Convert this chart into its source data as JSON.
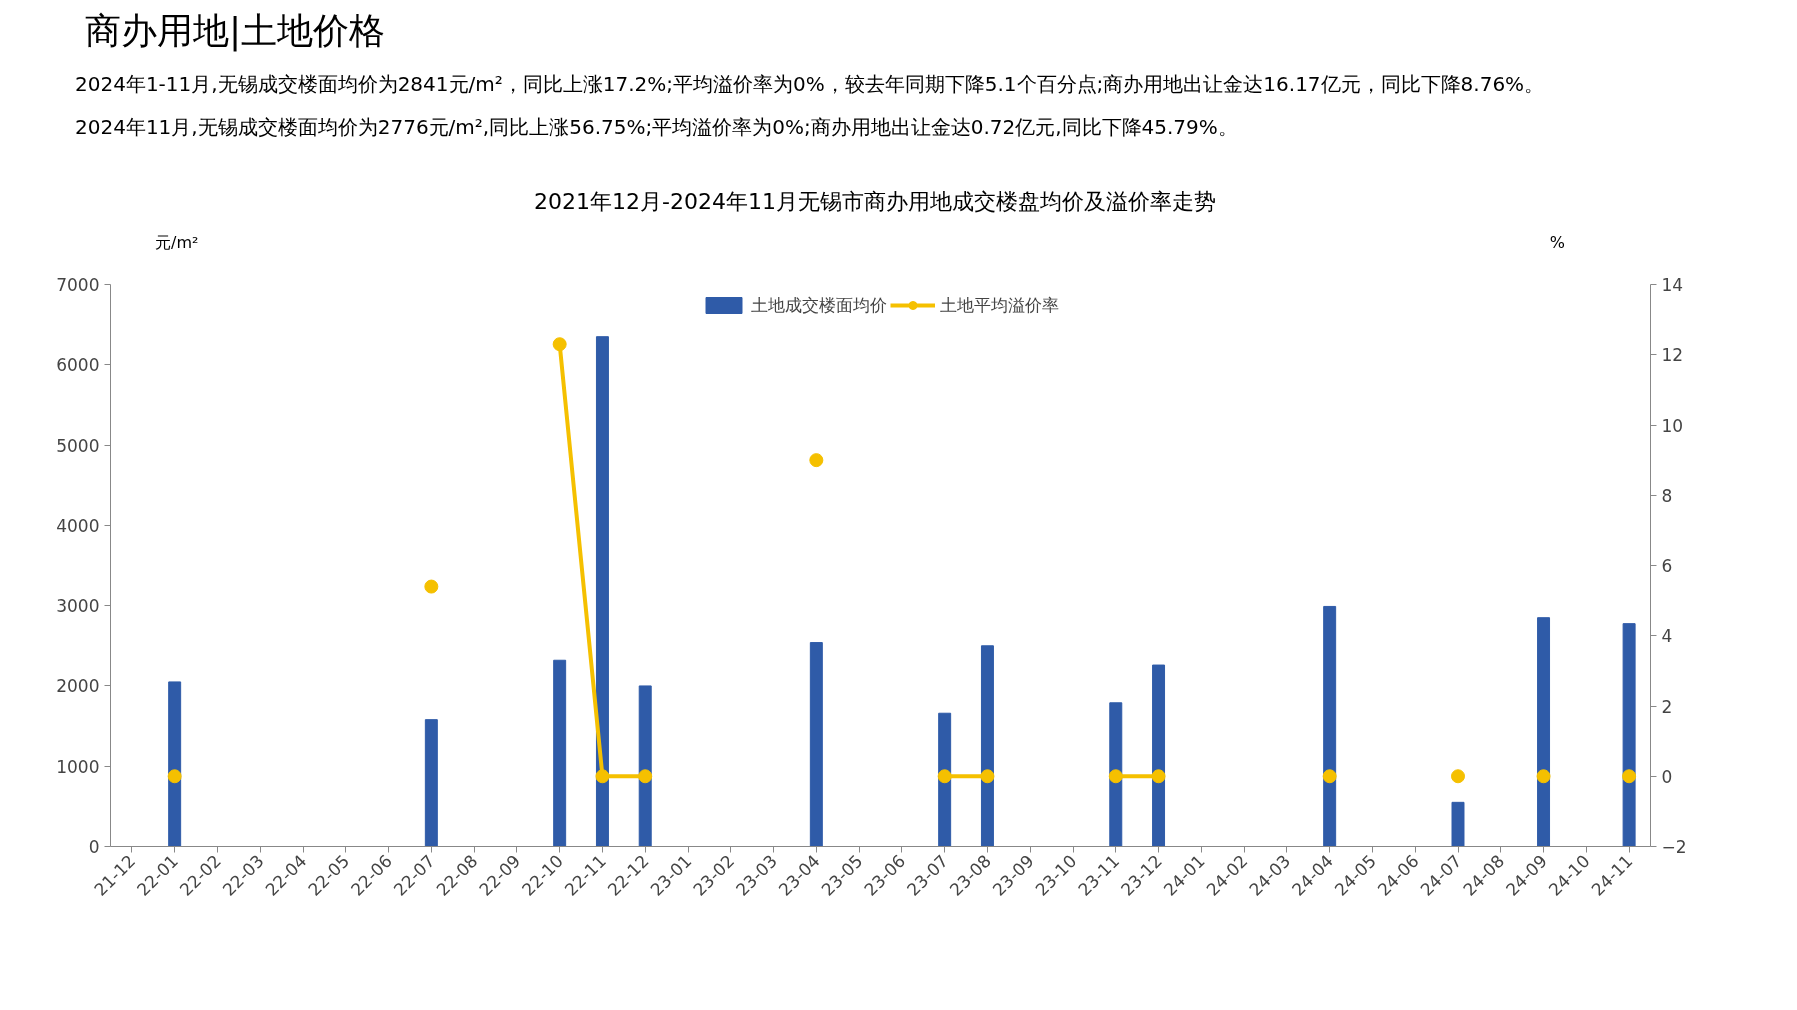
{
  "chart_data": {
    "type": "bar",
    "title": "商办用地|土地价格",
    "annotations": [
      "2024年1-11月,无锡成交楼面均价为2841元/m²，同比上涨17.2%;平均溢价率为0%，较去年同期下降5.1个百分点;商办用地出让金达16.17亿元，同比下降8.76%。",
      "2024年11月,无锡成交楼面均价为2776元/m²,同比上涨56.75%;平均溢价率为0%;商办用地出让金达0.72亿元,同比下降45.79%。"
    ],
    "subtitle": "2021年12月-2024年11月无锡市商办用地成交楼盘均价及溢价率走势",
    "ylabel": "元/m²",
    "y2label": "%",
    "categories": [
      "21-12",
      "22-01",
      "22-02",
      "22-03",
      "22-04",
      "22-05",
      "22-06",
      "22-07",
      "22-08",
      "22-09",
      "22-10",
      "22-11",
      "22-12",
      "23-01",
      "23-02",
      "23-03",
      "23-04",
      "23-05",
      "23-06",
      "23-07",
      "23-08",
      "23-09",
      "23-10",
      "23-11",
      "23-12",
      "24-01",
      "24-02",
      "24-03",
      "24-04",
      "24-05",
      "24-06",
      "24-07",
      "24-08",
      "24-09",
      "24-10",
      "24-11"
    ],
    "series": [
      {
        "name": "土地成交楼面均价",
        "color": "#2f5ba8",
        "values": [
          null,
          2050,
          null,
          null,
          null,
          null,
          null,
          1580,
          null,
          null,
          2320,
          6350,
          2000,
          null,
          null,
          null,
          2540,
          null,
          null,
          1660,
          2500,
          null,
          null,
          1790,
          2260,
          null,
          null,
          null,
          2990,
          null,
          null,
          550,
          null,
          2850,
          null,
          2776
        ]
      },
      {
        "name": "土地平均溢价率",
        "type": "line",
        "axis": "y2",
        "color": "#f5c000",
        "marker": "circle",
        "values": [
          null,
          0,
          null,
          null,
          null,
          null,
          null,
          5.4,
          null,
          null,
          12.3,
          0,
          0,
          null,
          null,
          null,
          9.0,
          null,
          null,
          0,
          0,
          null,
          null,
          0,
          0,
          null,
          null,
          null,
          0,
          null,
          null,
          0,
          null,
          0,
          null,
          0
        ]
      }
    ],
    "ylim": [
      0,
      7000
    ],
    "yticks": [
      0,
      1000,
      2000,
      3000,
      4000,
      5000,
      6000,
      7000
    ],
    "y2lim": [
      -2,
      14
    ],
    "y2ticks": [
      -2,
      0,
      2,
      4,
      6,
      8,
      10,
      12,
      14
    ],
    "grid": false,
    "legend": "top"
  }
}
